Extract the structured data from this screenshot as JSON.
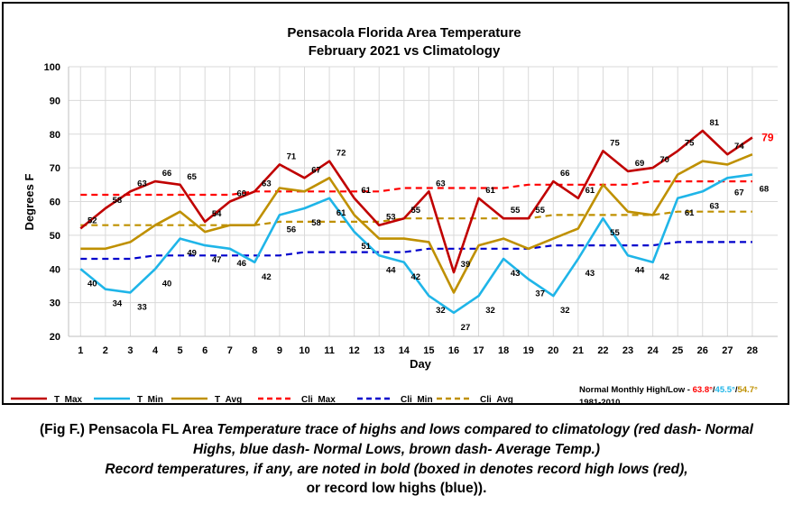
{
  "chart_data": {
    "type": "line",
    "title": "Pensacola Florida Area Temperature",
    "subtitle": "February 2021 vs Climatology",
    "xlabel": "Day",
    "ylabel": "Degrees F",
    "ylim": [
      20,
      100
    ],
    "yticks": [
      "20",
      "30",
      "40",
      "50",
      "60",
      "70",
      "80",
      "90",
      "100"
    ],
    "x": [
      1,
      2,
      3,
      4,
      5,
      6,
      7,
      8,
      9,
      10,
      11,
      12,
      13,
      14,
      15,
      16,
      17,
      18,
      19,
      20,
      21,
      22,
      23,
      24,
      25,
      26,
      27,
      28
    ],
    "grid": true,
    "legend_position": "bottom",
    "series": [
      {
        "name": "T_Max",
        "color": "#C00000",
        "dash": false,
        "labels": "above",
        "values": [
          52,
          58,
          63,
          66,
          65,
          54,
          60,
          63,
          71,
          67,
          72,
          61,
          53,
          55,
          63,
          39,
          61,
          55,
          55,
          66,
          61,
          75,
          69,
          70,
          75,
          81,
          74,
          79
        ]
      },
      {
        "name": "T_Min",
        "color": "#1FB5E8",
        "dash": false,
        "labels": "below",
        "values": [
          40,
          34,
          33,
          40,
          49,
          47,
          46,
          42,
          56,
          58,
          61,
          51,
          44,
          42,
          32,
          27,
          32,
          43,
          37,
          32,
          43,
          55,
          44,
          42,
          61,
          63,
          67,
          68
        ]
      },
      {
        "name": "T_Avg",
        "color": "#BF9000",
        "dash": false,
        "labels": "none",
        "values": [
          46,
          46,
          48,
          53,
          57,
          51,
          53,
          53,
          64,
          63,
          67,
          56,
          49,
          49,
          48,
          33,
          47,
          49,
          46,
          49,
          52,
          65,
          57,
          56,
          68,
          72,
          71,
          74
        ]
      },
      {
        "name": "Cli_Max",
        "color": "#FF0000",
        "dash": true,
        "labels": "none",
        "values": [
          62,
          62,
          62,
          62,
          62,
          62,
          62,
          63,
          63,
          63,
          63,
          63,
          63,
          64,
          64,
          64,
          64,
          64,
          65,
          65,
          65,
          65,
          65,
          66,
          66,
          66,
          66,
          66
        ]
      },
      {
        "name": "Cli_Min",
        "color": "#0000CC",
        "dash": true,
        "labels": "none",
        "values": [
          43,
          43,
          43,
          44,
          44,
          44,
          44,
          44,
          44,
          45,
          45,
          45,
          45,
          45,
          46,
          46,
          46,
          46,
          46,
          47,
          47,
          47,
          47,
          47,
          48,
          48,
          48,
          48
        ]
      },
      {
        "name": "Cli_Avg",
        "color": "#BF9000",
        "dash": true,
        "labels": "none",
        "values": [
          53,
          53,
          53,
          53,
          53,
          53,
          53,
          53,
          54,
          54,
          54,
          54,
          54,
          55,
          55,
          55,
          55,
          55,
          55,
          56,
          56,
          56,
          56,
          56,
          57,
          57,
          57,
          57
        ]
      }
    ],
    "highlight_label": {
      "series": "T_Max",
      "day": 28,
      "text": "79",
      "color": "#FF0000"
    },
    "normals_note": {
      "prefix": "Normal Monthly High/Low - ",
      "high": "63.8°",
      "sep1": "/",
      "low": "45.5°",
      "sep2": "/",
      "avg": "54.7°",
      "period": "1981-2010",
      "high_color": "#FF0000",
      "low_color": "#1FB5E8",
      "avg_color": "#BF9000"
    }
  },
  "caption": {
    "line1_a": "(Fig F.) Pensacola FL Area ",
    "line1_b": "Temperature trace of highs and lows compared to climatology (red dash- Normal",
    "line2": "Highs, blue dash- Normal Lows, brown dash- Average Temp.)",
    "line3": "Record temperatures, if any, are noted in bold (boxed in denotes record high lows (red),",
    "line4": "or record low highs (blue))."
  }
}
